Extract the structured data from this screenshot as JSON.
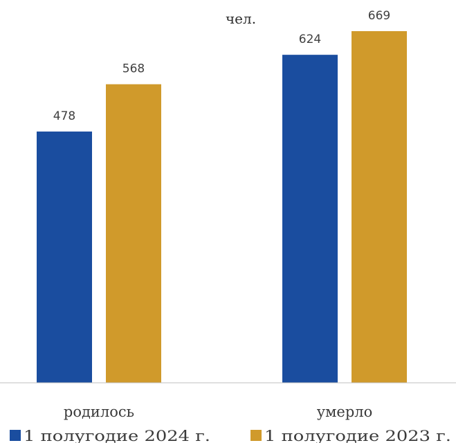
{
  "chart_data": {
    "type": "bar",
    "unit": "чел.",
    "categories": [
      "родилось",
      "умерло"
    ],
    "series": [
      {
        "name": "1 полугодие 2024 г.",
        "color": "#1a4d9f",
        "values": [
          478,
          624
        ]
      },
      {
        "name": "1 полугодие 2023 г.",
        "color": "#d09a2b",
        "values": [
          568,
          669
        ]
      }
    ],
    "ylim": [
      0,
      700
    ],
    "data_labels": true,
    "grid": false,
    "legend": "bottom"
  }
}
